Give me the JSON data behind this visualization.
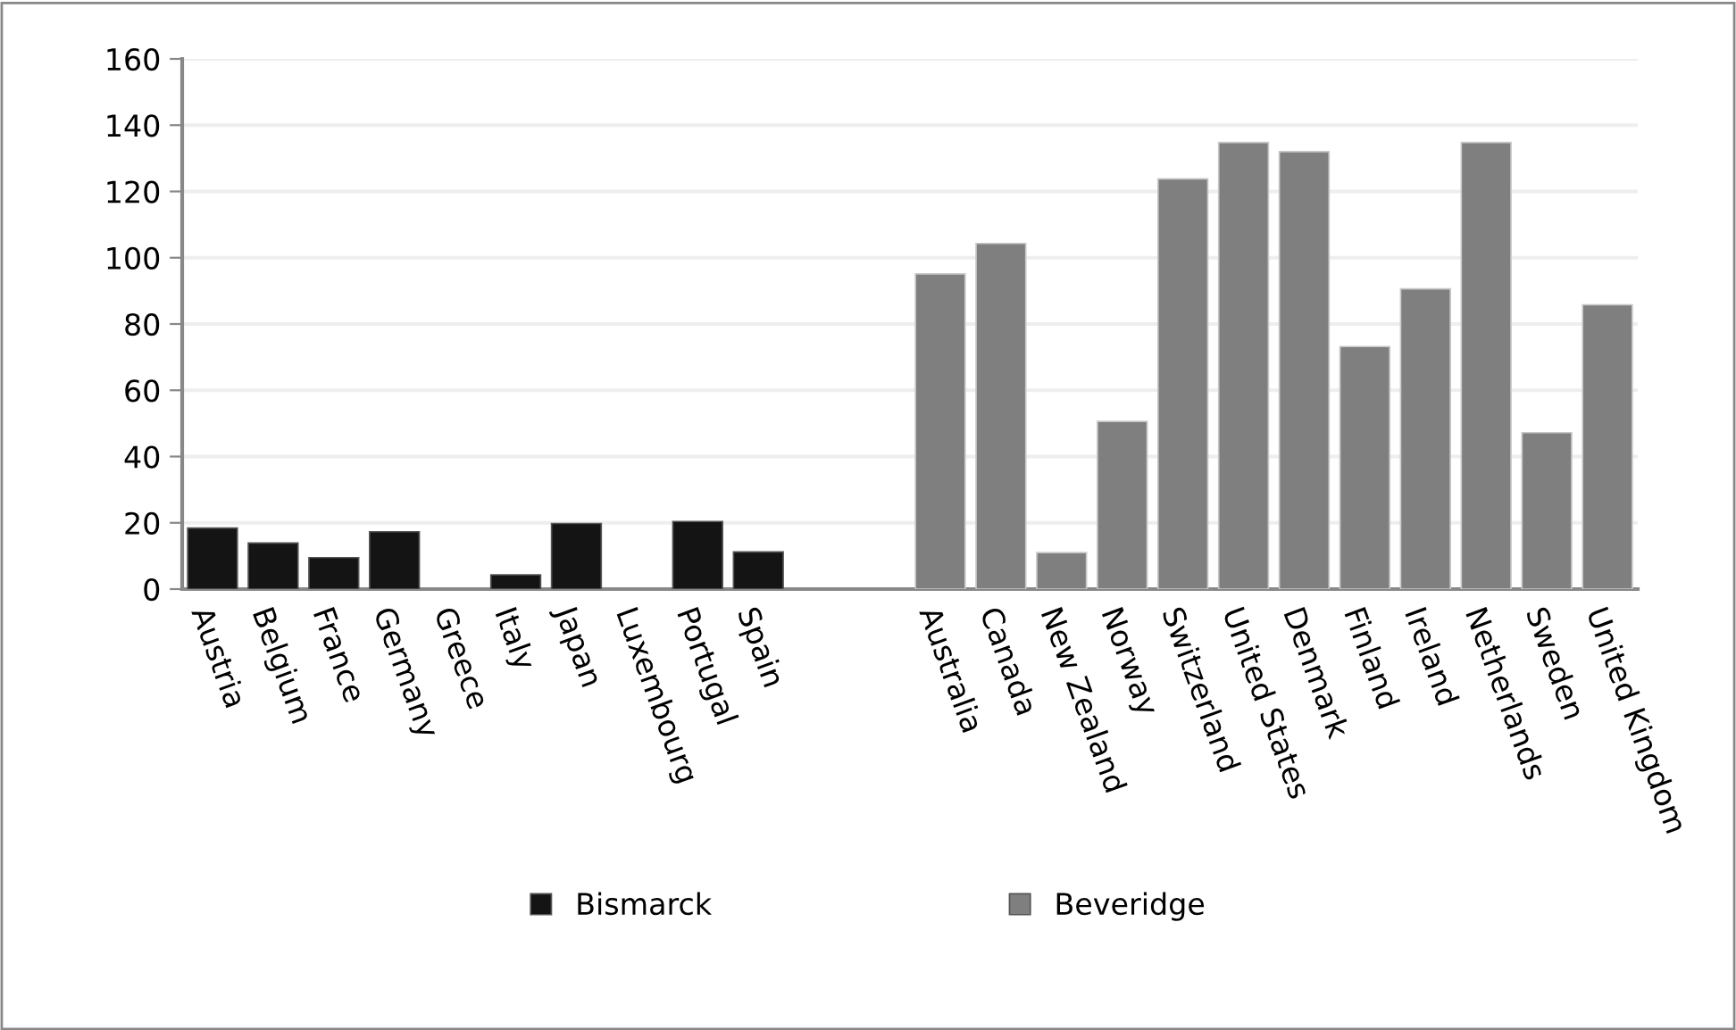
{
  "chart_data": {
    "type": "bar",
    "categories": [
      "Austria",
      "Belgium",
      "France",
      "Germany",
      "Greece",
      "Italy",
      "Japan",
      "Luxembourg",
      "Portugal",
      "Spain",
      null,
      null,
      "Australia",
      "Canada",
      "New Zealand",
      "Norway",
      "Switzerland",
      "United States",
      "Denmark",
      "Finland",
      "Ireland",
      "Netherlands",
      "Sweden",
      "United Kingdom"
    ],
    "series": [
      {
        "name": "Bismarck",
        "color": "#141414",
        "values": [
          18.4,
          13.9,
          9.5,
          17.3,
          null,
          4.3,
          19.8,
          null,
          20.4,
          11.2,
          null,
          null,
          null,
          null,
          null,
          null,
          null,
          null,
          null,
          null,
          null,
          null,
          null,
          null
        ]
      },
      {
        "name": "Beveridge",
        "color": "#7f7f7f",
        "values": [
          null,
          null,
          null,
          null,
          null,
          null,
          null,
          null,
          null,
          null,
          null,
          null,
          95.1,
          104.3,
          11.0,
          50.6,
          123.8,
          134.8,
          132.0,
          73.2,
          90.6,
          134.8,
          47.2,
          85.8
        ]
      }
    ],
    "ylim": [
      0,
      160
    ],
    "yticks": [
      0,
      20,
      40,
      60,
      80,
      100,
      120,
      140,
      160
    ],
    "grid": "y",
    "legend": "bottom"
  }
}
